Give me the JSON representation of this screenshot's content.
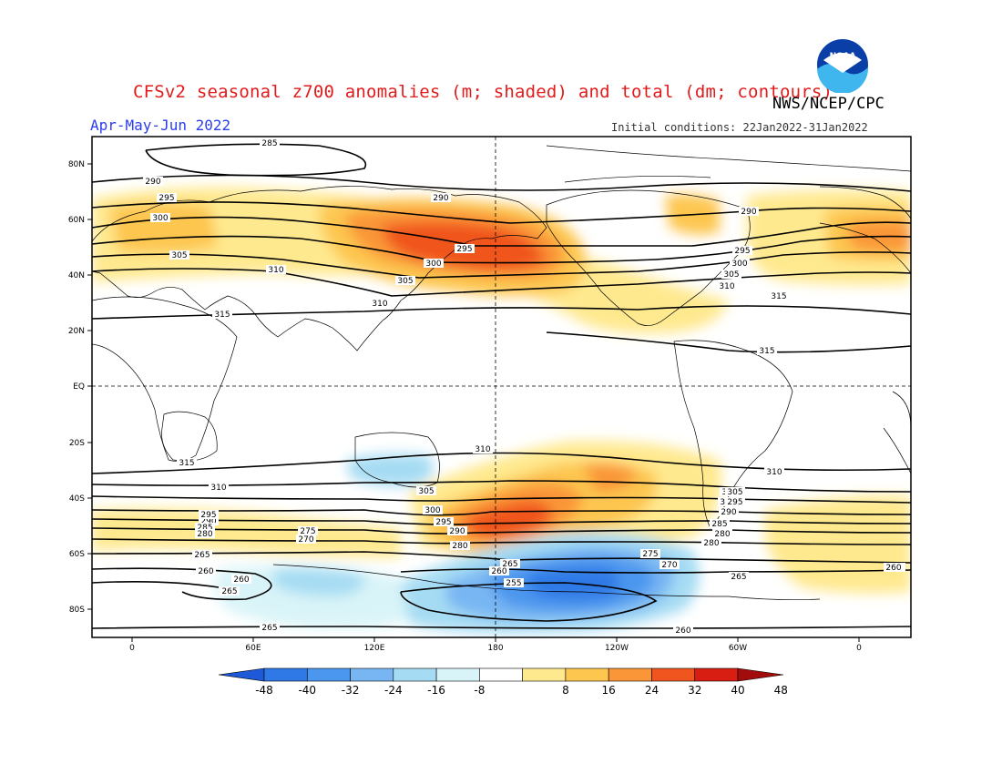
{
  "header": {
    "title": "CFSv2 seasonal z700 anomalies (m; shaded) and total (dm; contours)",
    "agency": "NWS/NCEP/CPC",
    "season": "Apr-May-Jun 2022",
    "initial_conditions": "Initial conditions: 22Jan2022-31Jan2022",
    "logo_text": "NOAA"
  },
  "axes": {
    "lat_labels": [
      "80N",
      "60N",
      "40N",
      "20N",
      "EQ",
      "20S",
      "40S",
      "60S",
      "80S"
    ],
    "lon_labels": [
      "0",
      "60E",
      "120E",
      "180",
      "120W",
      "60W",
      "0"
    ]
  },
  "colorbar": {
    "labels": [
      "-48",
      "-40",
      "-32",
      "-24",
      "-16",
      "-8",
      "8",
      "16",
      "24",
      "32",
      "40",
      "48"
    ],
    "colors": [
      "#1e5ad8",
      "#2f79e6",
      "#4b96ee",
      "#78b6f3",
      "#a6dcf3",
      "#d9f4f8",
      "#ffffff",
      "#ffe98f",
      "#fdc64f",
      "#fa9638",
      "#f0541f",
      "#d81d12",
      "#a30c0c"
    ]
  },
  "contour_labels": [
    {
      "text": "285"
    },
    {
      "text": "290"
    },
    {
      "text": "295"
    },
    {
      "text": "300"
    },
    {
      "text": "305"
    },
    {
      "text": "310"
    },
    {
      "text": "315"
    },
    {
      "text": "290"
    },
    {
      "text": "295"
    },
    {
      "text": "300"
    },
    {
      "text": "305"
    },
    {
      "text": "310"
    },
    {
      "text": "290"
    },
    {
      "text": "295"
    },
    {
      "text": "300"
    },
    {
      "text": "305"
    },
    {
      "text": "310"
    },
    {
      "text": "315"
    },
    {
      "text": "315"
    },
    {
      "text": "310"
    },
    {
      "text": "315"
    },
    {
      "text": "310"
    },
    {
      "text": "305"
    },
    {
      "text": "300"
    },
    {
      "text": "295"
    },
    {
      "text": "290"
    },
    {
      "text": "285"
    },
    {
      "text": "280"
    },
    {
      "text": "295"
    },
    {
      "text": "290"
    },
    {
      "text": "280"
    },
    {
      "text": "275"
    },
    {
      "text": "270"
    },
    {
      "text": "265"
    },
    {
      "text": "260"
    },
    {
      "text": "260"
    },
    {
      "text": "265"
    },
    {
      "text": "265"
    },
    {
      "text": "305"
    },
    {
      "text": "300"
    },
    {
      "text": "295"
    },
    {
      "text": "290"
    },
    {
      "text": "285"
    },
    {
      "text": "280"
    },
    {
      "text": "265"
    },
    {
      "text": "260"
    },
    {
      "text": "255"
    },
    {
      "text": "275"
    },
    {
      "text": "270"
    },
    {
      "text": "260"
    },
    {
      "text": "310"
    },
    {
      "text": "305"
    },
    {
      "text": "300"
    },
    {
      "text": "295"
    },
    {
      "text": "290"
    },
    {
      "text": "285"
    },
    {
      "text": "280"
    },
    {
      "text": "265"
    },
    {
      "text": "260"
    }
  ]
}
